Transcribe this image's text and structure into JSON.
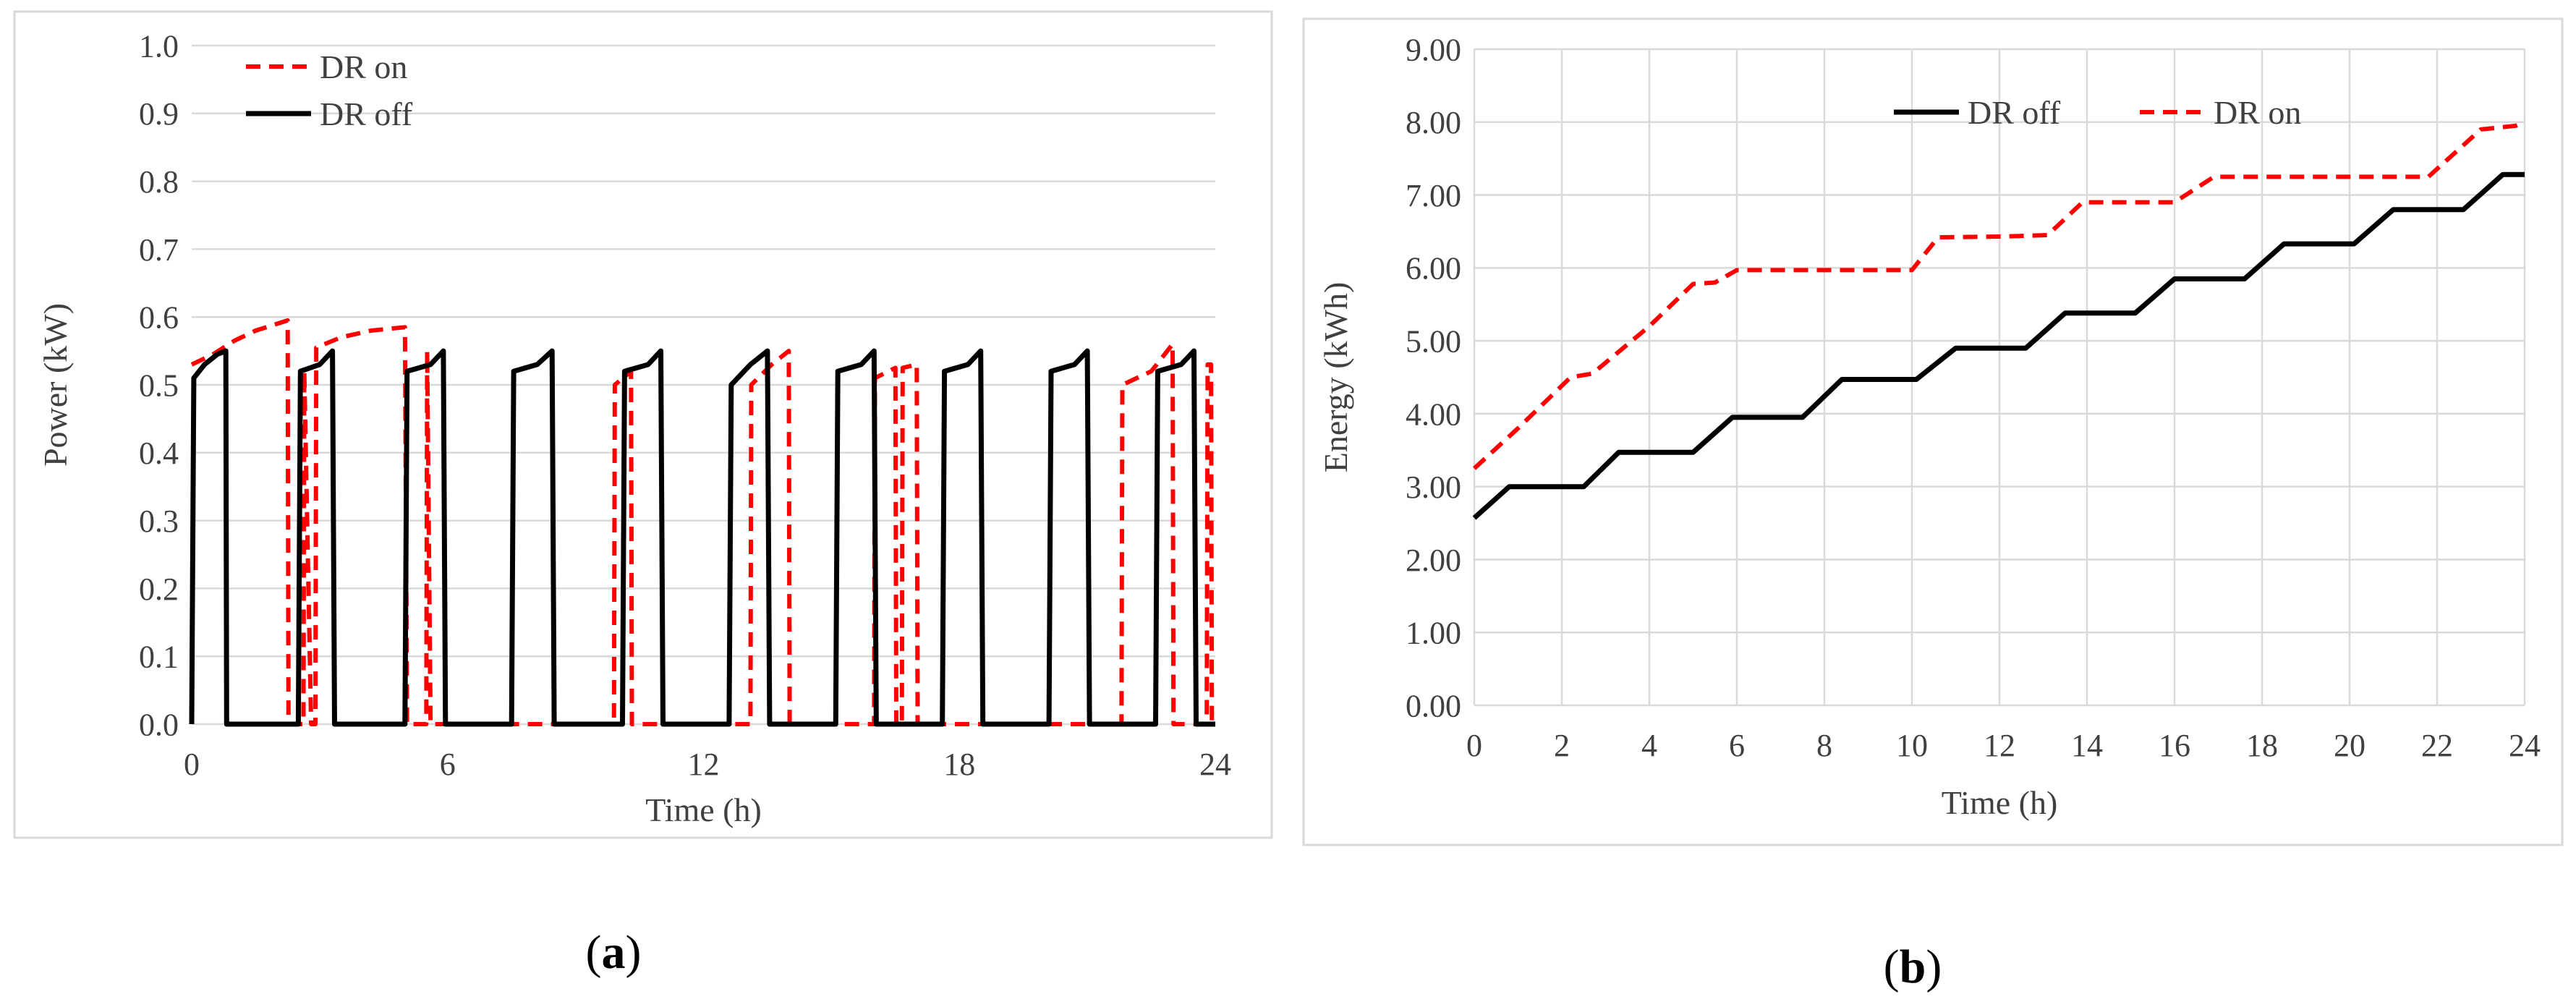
{
  "captions": {
    "a": "a",
    "b": "b"
  },
  "chart_data": [
    {
      "id": "a",
      "type": "line",
      "title": "",
      "xlabel": "Time (h)",
      "ylabel": "Power (kW)",
      "xlim": [
        0,
        24
      ],
      "ylim": [
        0,
        1.0
      ],
      "xticks": [
        "0",
        "6",
        "12",
        "18",
        "24"
      ],
      "xtick_values": [
        0,
        6,
        12,
        18,
        24
      ],
      "yticks": [
        "0.0",
        "0.1",
        "0.2",
        "0.3",
        "0.4",
        "0.5",
        "0.6",
        "0.7",
        "0.8",
        "0.9",
        "1.0"
      ],
      "ytick_values": [
        0,
        0.1,
        0.2,
        0.3,
        0.4,
        0.5,
        0.6,
        0.7,
        0.8,
        0.9,
        1.0
      ],
      "grid": "horizontal",
      "legend": "top-left",
      "series": [
        {
          "name": "DR on",
          "color": "#ff0000",
          "style": "dashed",
          "points": [
            [
              0,
              0.53
            ],
            [
              0.5,
              0.545
            ],
            [
              1.0,
              0.565
            ],
            [
              1.5,
              0.58
            ],
            [
              2.0,
              0.59
            ],
            [
              2.25,
              0.595
            ],
            [
              2.27,
              0
            ],
            [
              2.62,
              0
            ],
            [
              2.64,
              0.52
            ],
            [
              2.8,
              0
            ],
            [
              2.9,
              0
            ],
            [
              2.92,
              0.555
            ],
            [
              3.5,
              0.57
            ],
            [
              4.2,
              0.58
            ],
            [
              5.0,
              0.585
            ],
            [
              5.05,
              0
            ],
            [
              5.5,
              0
            ],
            [
              5.52,
              0.55
            ],
            [
              5.6,
              0
            ],
            [
              7.2,
              0
            ],
            [
              8.0,
              0
            ],
            [
              9.9,
              0
            ],
            [
              9.92,
              0.5
            ],
            [
              10.3,
              0.52
            ],
            [
              10.32,
              0
            ],
            [
              13.1,
              0
            ],
            [
              13.12,
              0.5
            ],
            [
              13.6,
              0.53
            ],
            [
              14.0,
              0.55
            ],
            [
              14.02,
              0
            ],
            [
              16.0,
              0
            ],
            [
              16.02,
              0.51
            ],
            [
              16.5,
              0.525
            ],
            [
              16.52,
              0
            ],
            [
              16.65,
              0
            ],
            [
              16.67,
              0.525
            ],
            [
              17.0,
              0.53
            ],
            [
              17.02,
              0
            ],
            [
              21.8,
              0
            ],
            [
              21.82,
              0.5
            ],
            [
              22.5,
              0.52
            ],
            [
              23.0,
              0.56
            ],
            [
              23.02,
              0
            ],
            [
              23.8,
              0
            ],
            [
              23.82,
              0.53
            ],
            [
              23.9,
              0.53
            ],
            [
              23.92,
              0
            ]
          ]
        },
        {
          "name": "DR off",
          "color": "#000000",
          "style": "solid",
          "points": [
            [
              0,
              0
            ],
            [
              0.05,
              0.51
            ],
            [
              0.3,
              0.53
            ],
            [
              0.6,
              0.545
            ],
            [
              0.8,
              0.55
            ],
            [
              0.82,
              0
            ],
            [
              2.5,
              0
            ],
            [
              2.55,
              0.52
            ],
            [
              3.0,
              0.53
            ],
            [
              3.3,
              0.55
            ],
            [
              3.35,
              0
            ],
            [
              5.0,
              0
            ],
            [
              5.05,
              0.52
            ],
            [
              5.6,
              0.53
            ],
            [
              5.9,
              0.55
            ],
            [
              5.95,
              0
            ],
            [
              7.5,
              0
            ],
            [
              7.55,
              0.52
            ],
            [
              8.1,
              0.53
            ],
            [
              8.45,
              0.55
            ],
            [
              8.5,
              0
            ],
            [
              10.1,
              0
            ],
            [
              10.15,
              0.52
            ],
            [
              10.7,
              0.53
            ],
            [
              11.0,
              0.55
            ],
            [
              11.05,
              0
            ],
            [
              12.6,
              0
            ],
            [
              12.65,
              0.5
            ],
            [
              13.1,
              0.53
            ],
            [
              13.5,
              0.55
            ],
            [
              13.55,
              0
            ],
            [
              15.1,
              0
            ],
            [
              15.15,
              0.52
            ],
            [
              15.7,
              0.53
            ],
            [
              16.0,
              0.55
            ],
            [
              16.05,
              0
            ],
            [
              17.6,
              0
            ],
            [
              17.65,
              0.52
            ],
            [
              18.2,
              0.53
            ],
            [
              18.5,
              0.55
            ],
            [
              18.55,
              0
            ],
            [
              20.1,
              0
            ],
            [
              20.15,
              0.52
            ],
            [
              20.7,
              0.53
            ],
            [
              21.0,
              0.55
            ],
            [
              21.05,
              0
            ],
            [
              22.6,
              0
            ],
            [
              22.65,
              0.52
            ],
            [
              23.2,
              0.53
            ],
            [
              23.5,
              0.55
            ],
            [
              23.55,
              0
            ],
            [
              24,
              0
            ]
          ]
        }
      ]
    },
    {
      "id": "b",
      "type": "line",
      "title": "",
      "xlabel": "Time (h)",
      "ylabel": "Energy (kWh)",
      "xlim": [
        0,
        24
      ],
      "ylim": [
        0,
        9
      ],
      "xticks": [
        "0",
        "2",
        "4",
        "6",
        "8",
        "10",
        "12",
        "14",
        "16",
        "18",
        "20",
        "22",
        "24"
      ],
      "xtick_values": [
        0,
        2,
        4,
        6,
        8,
        10,
        12,
        14,
        16,
        18,
        20,
        22,
        24
      ],
      "yticks": [
        "0.00",
        "1.00",
        "2.00",
        "3.00",
        "4.00",
        "5.00",
        "6.00",
        "7.00",
        "8.00",
        "9.00"
      ],
      "ytick_values": [
        0,
        1,
        2,
        3,
        4,
        5,
        6,
        7,
        8,
        9
      ],
      "grid": "both",
      "legend": "top-center",
      "series": [
        {
          "name": "DR off",
          "color": "#000000",
          "style": "solid",
          "points": [
            [
              0,
              2.57
            ],
            [
              0.8,
              3.0
            ],
            [
              2.5,
              3.0
            ],
            [
              3.3,
              3.47
            ],
            [
              5.0,
              3.47
            ],
            [
              5.9,
              3.95
            ],
            [
              7.5,
              3.95
            ],
            [
              8.4,
              4.47
            ],
            [
              10.1,
              4.47
            ],
            [
              11.0,
              4.9
            ],
            [
              12.6,
              4.9
            ],
            [
              13.5,
              5.38
            ],
            [
              15.1,
              5.38
            ],
            [
              16.0,
              5.85
            ],
            [
              17.6,
              5.85
            ],
            [
              18.5,
              6.33
            ],
            [
              20.1,
              6.33
            ],
            [
              21.0,
              6.8
            ],
            [
              22.6,
              6.8
            ],
            [
              23.5,
              7.28
            ],
            [
              24,
              7.28
            ]
          ]
        },
        {
          "name": "DR on",
          "color": "#ff0000",
          "style": "dashed",
          "points": [
            [
              0,
              3.25
            ],
            [
              1.0,
              3.8
            ],
            [
              2.2,
              4.5
            ],
            [
              2.7,
              4.55
            ],
            [
              4.0,
              5.2
            ],
            [
              5.0,
              5.78
            ],
            [
              5.5,
              5.8
            ],
            [
              6.0,
              5.97
            ],
            [
              10.0,
              5.97
            ],
            [
              10.6,
              6.42
            ],
            [
              12.0,
              6.43
            ],
            [
              13.1,
              6.45
            ],
            [
              13.9,
              6.9
            ],
            [
              16.0,
              6.9
            ],
            [
              16.9,
              7.25
            ],
            [
              21.8,
              7.25
            ],
            [
              23.0,
              7.9
            ],
            [
              23.8,
              7.95
            ],
            [
              24,
              8.0
            ]
          ]
        }
      ]
    }
  ]
}
